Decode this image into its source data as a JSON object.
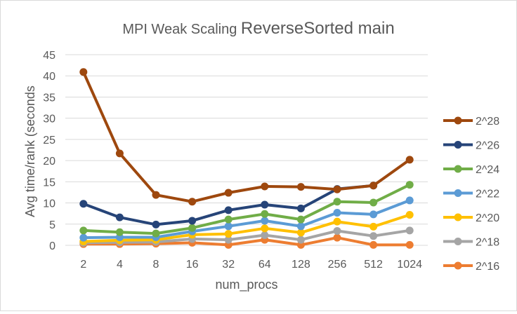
{
  "chart_data": {
    "type": "line",
    "title_part1": "MPI Weak Scaling ",
    "title_part2": "ReverseSorted  main",
    "xlabel": "num_procs",
    "ylabel": "Avg time/rank (seconds",
    "categories": [
      "2",
      "4",
      "8",
      "16",
      "32",
      "64",
      "128",
      "256",
      "512",
      "1024"
    ],
    "ylim": [
      0,
      45
    ],
    "yticks": [
      0,
      5,
      10,
      15,
      20,
      25,
      30,
      35,
      40,
      45
    ],
    "grid": true,
    "legend_position": "right",
    "series": [
      {
        "name": "2^28",
        "color": "#9e480e",
        "values": [
          40.9,
          21.7,
          11.9,
          10.3,
          12.4,
          13.9,
          13.8,
          13.2,
          14.1,
          20.2
        ]
      },
      {
        "name": "2^26",
        "color": "#264478",
        "values": [
          9.8,
          6.6,
          4.9,
          5.8,
          8.3,
          9.6,
          8.7,
          13.3,
          14.1,
          null
        ]
      },
      {
        "name": "2^24",
        "color": "#70ad47",
        "values": [
          3.5,
          3.1,
          2.8,
          4.1,
          6.1,
          7.4,
          6.1,
          10.3,
          10.1,
          14.3
        ]
      },
      {
        "name": "2^22",
        "color": "#5b9bd5",
        "values": [
          1.8,
          1.9,
          1.9,
          3.3,
          4.5,
          5.8,
          4.5,
          7.7,
          7.3,
          10.6
        ]
      },
      {
        "name": "2^20",
        "color": "#ffc000",
        "values": [
          0.9,
          1.2,
          1.3,
          2.5,
          2.7,
          4.0,
          3.0,
          5.6,
          4.4,
          7.2
        ]
      },
      {
        "name": "2^18",
        "color": "#a5a5a5",
        "values": [
          0.6,
          0.7,
          0.8,
          1.5,
          1.3,
          2.4,
          1.3,
          3.4,
          2.2,
          3.5
        ]
      },
      {
        "name": "2^16",
        "color": "#ed7d31",
        "values": [
          0.3,
          0.3,
          0.4,
          0.6,
          0.1,
          1.3,
          0.1,
          1.8,
          0.1,
          0.1
        ]
      }
    ]
  }
}
